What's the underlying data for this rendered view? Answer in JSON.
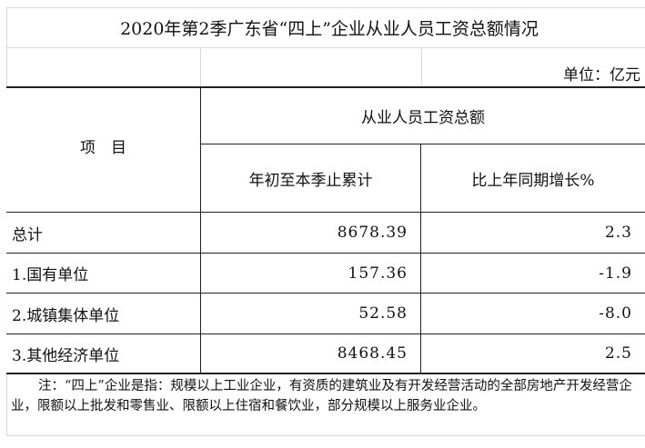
{
  "title": "2020年第2季广东省“四上”企业从业人员工资总额情况",
  "unit": "单位：亿元",
  "header": {
    "item": "项　目",
    "group": "从业人员工资总额",
    "col1": "年初至本季止累计",
    "col2": "比上年同期增长%"
  },
  "rows": [
    {
      "label": "总计",
      "cumulative": "8678.39",
      "growth": "2.3"
    },
    {
      "label": "1.国有单位",
      "cumulative": "157.36",
      "growth": "-1.9"
    },
    {
      "label": "2.城镇集体单位",
      "cumulative": "52.58",
      "growth": "-8.0"
    },
    {
      "label": "3.其他经济单位",
      "cumulative": "8468.45",
      "growth": "2.5"
    }
  ],
  "note": "注：“四上”企业是指：规模以上工业企业，有资质的建筑业及有开发经营活动的全部房地产开发经营企业，限额以上批发和零售业、限额以上住宿和餐饮业，部分规模以上服务业企业。"
}
